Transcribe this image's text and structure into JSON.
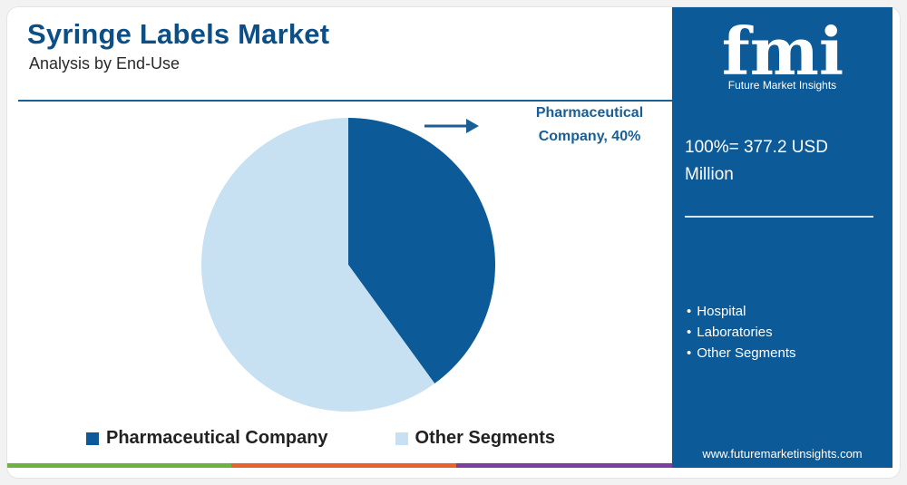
{
  "header": {
    "title": "Syringe Labels Market",
    "subtitle": "Analysis by End-Use"
  },
  "chart_data": {
    "type": "pie",
    "slices": [
      {
        "label": "Pharmaceutical Company",
        "value": 40,
        "color": "#0c5a97"
      },
      {
        "label": "Other Segments",
        "value": 60,
        "color": "#c7e1f3"
      }
    ],
    "annotation": "Pharmaceutical Company, 40%",
    "legend": [
      "Pharmaceutical Company",
      "Other Segments"
    ],
    "legend_position": "bottom"
  },
  "callout": {
    "line1": "Pharmaceutical",
    "line2": "Company, 40%"
  },
  "panel": {
    "logo_text": "fmi",
    "logo_caption": "Future Market Insights",
    "total_line1": "100%= 377.2 USD",
    "total_line2": "Million",
    "segments": [
      "Hospital",
      "Laboratories",
      "Other Segments"
    ],
    "website": "www.futuremarketinsights.com"
  },
  "colors": {
    "accent": "#0c5a97",
    "light": "#c7e1f3",
    "bottom_bar": [
      "#6db33f",
      "#e8632a",
      "#7b3fa0"
    ]
  }
}
